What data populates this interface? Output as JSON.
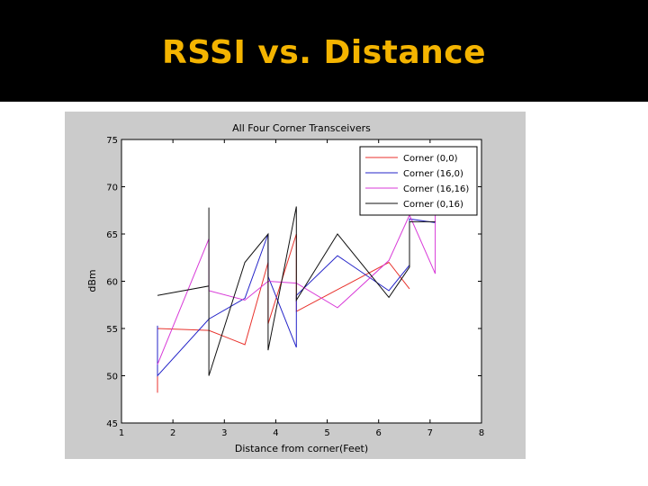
{
  "slide": {
    "title": "RSSI vs. Distance"
  },
  "colors": {
    "title_band": "#000000",
    "title_text": "#f4b400",
    "figure_bg": "#cbcbcb",
    "axes_bg": "#ffffff"
  },
  "chart_data": {
    "type": "line",
    "title": "All Four Corner Transceivers",
    "xlabel": "Distance from corner(Feet)",
    "ylabel": "dBm",
    "xlim": [
      1,
      8
    ],
    "ylim": [
      45,
      75
    ],
    "xticks": [
      "1",
      "2",
      "3",
      "4",
      "5",
      "6",
      "7",
      "8"
    ],
    "yticks": [
      "45",
      "50",
      "55",
      "60",
      "65",
      "70",
      "75"
    ],
    "legend_position": "top-right",
    "grid": false,
    "series": [
      {
        "name": "Corner (0,0)",
        "color": "#e8322c",
        "points": [
          [
            1.7,
            48.2
          ],
          [
            1.7,
            55.0
          ],
          [
            2.7,
            54.8
          ],
          [
            3.4,
            53.3
          ],
          [
            3.85,
            62.0
          ],
          [
            3.85,
            55.5
          ],
          [
            4.4,
            65.0
          ],
          [
            4.4,
            56.8
          ],
          [
            6.2,
            62.0
          ],
          [
            6.6,
            59.2
          ]
        ]
      },
      {
        "name": "Corner (16,0)",
        "color": "#2323c8",
        "points": [
          [
            1.7,
            55.3
          ],
          [
            1.7,
            50.0
          ],
          [
            2.7,
            56.0
          ],
          [
            3.4,
            58.2
          ],
          [
            3.85,
            65.0
          ],
          [
            3.85,
            60.5
          ],
          [
            4.4,
            53.0
          ],
          [
            4.4,
            58.5
          ],
          [
            5.2,
            62.7
          ],
          [
            6.2,
            59.0
          ],
          [
            6.6,
            61.7
          ],
          [
            6.6,
            66.6
          ],
          [
            7.1,
            66.2
          ]
        ]
      },
      {
        "name": "Corner (16,16)",
        "color": "#d83ad8",
        "points": [
          [
            1.7,
            51.2
          ],
          [
            2.7,
            64.5
          ],
          [
            2.7,
            59.0
          ],
          [
            3.4,
            58.0
          ],
          [
            3.85,
            60.0
          ],
          [
            4.4,
            59.8
          ],
          [
            5.2,
            57.2
          ],
          [
            6.2,
            62.2
          ],
          [
            6.6,
            67.0
          ],
          [
            7.1,
            60.8
          ],
          [
            7.1,
            67.0
          ]
        ]
      },
      {
        "name": "Corner (0,16)",
        "color": "#101010",
        "points": [
          [
            1.7,
            58.5
          ],
          [
            2.7,
            59.5
          ],
          [
            2.7,
            67.8
          ],
          [
            2.7,
            50.0
          ],
          [
            3.4,
            62.0
          ],
          [
            3.85,
            65.0
          ],
          [
            3.85,
            52.7
          ],
          [
            4.4,
            67.9
          ],
          [
            4.4,
            58.0
          ],
          [
            5.2,
            65.0
          ],
          [
            6.2,
            58.3
          ],
          [
            6.6,
            61.5
          ],
          [
            6.6,
            66.3
          ],
          [
            7.1,
            66.3
          ]
        ]
      }
    ]
  }
}
